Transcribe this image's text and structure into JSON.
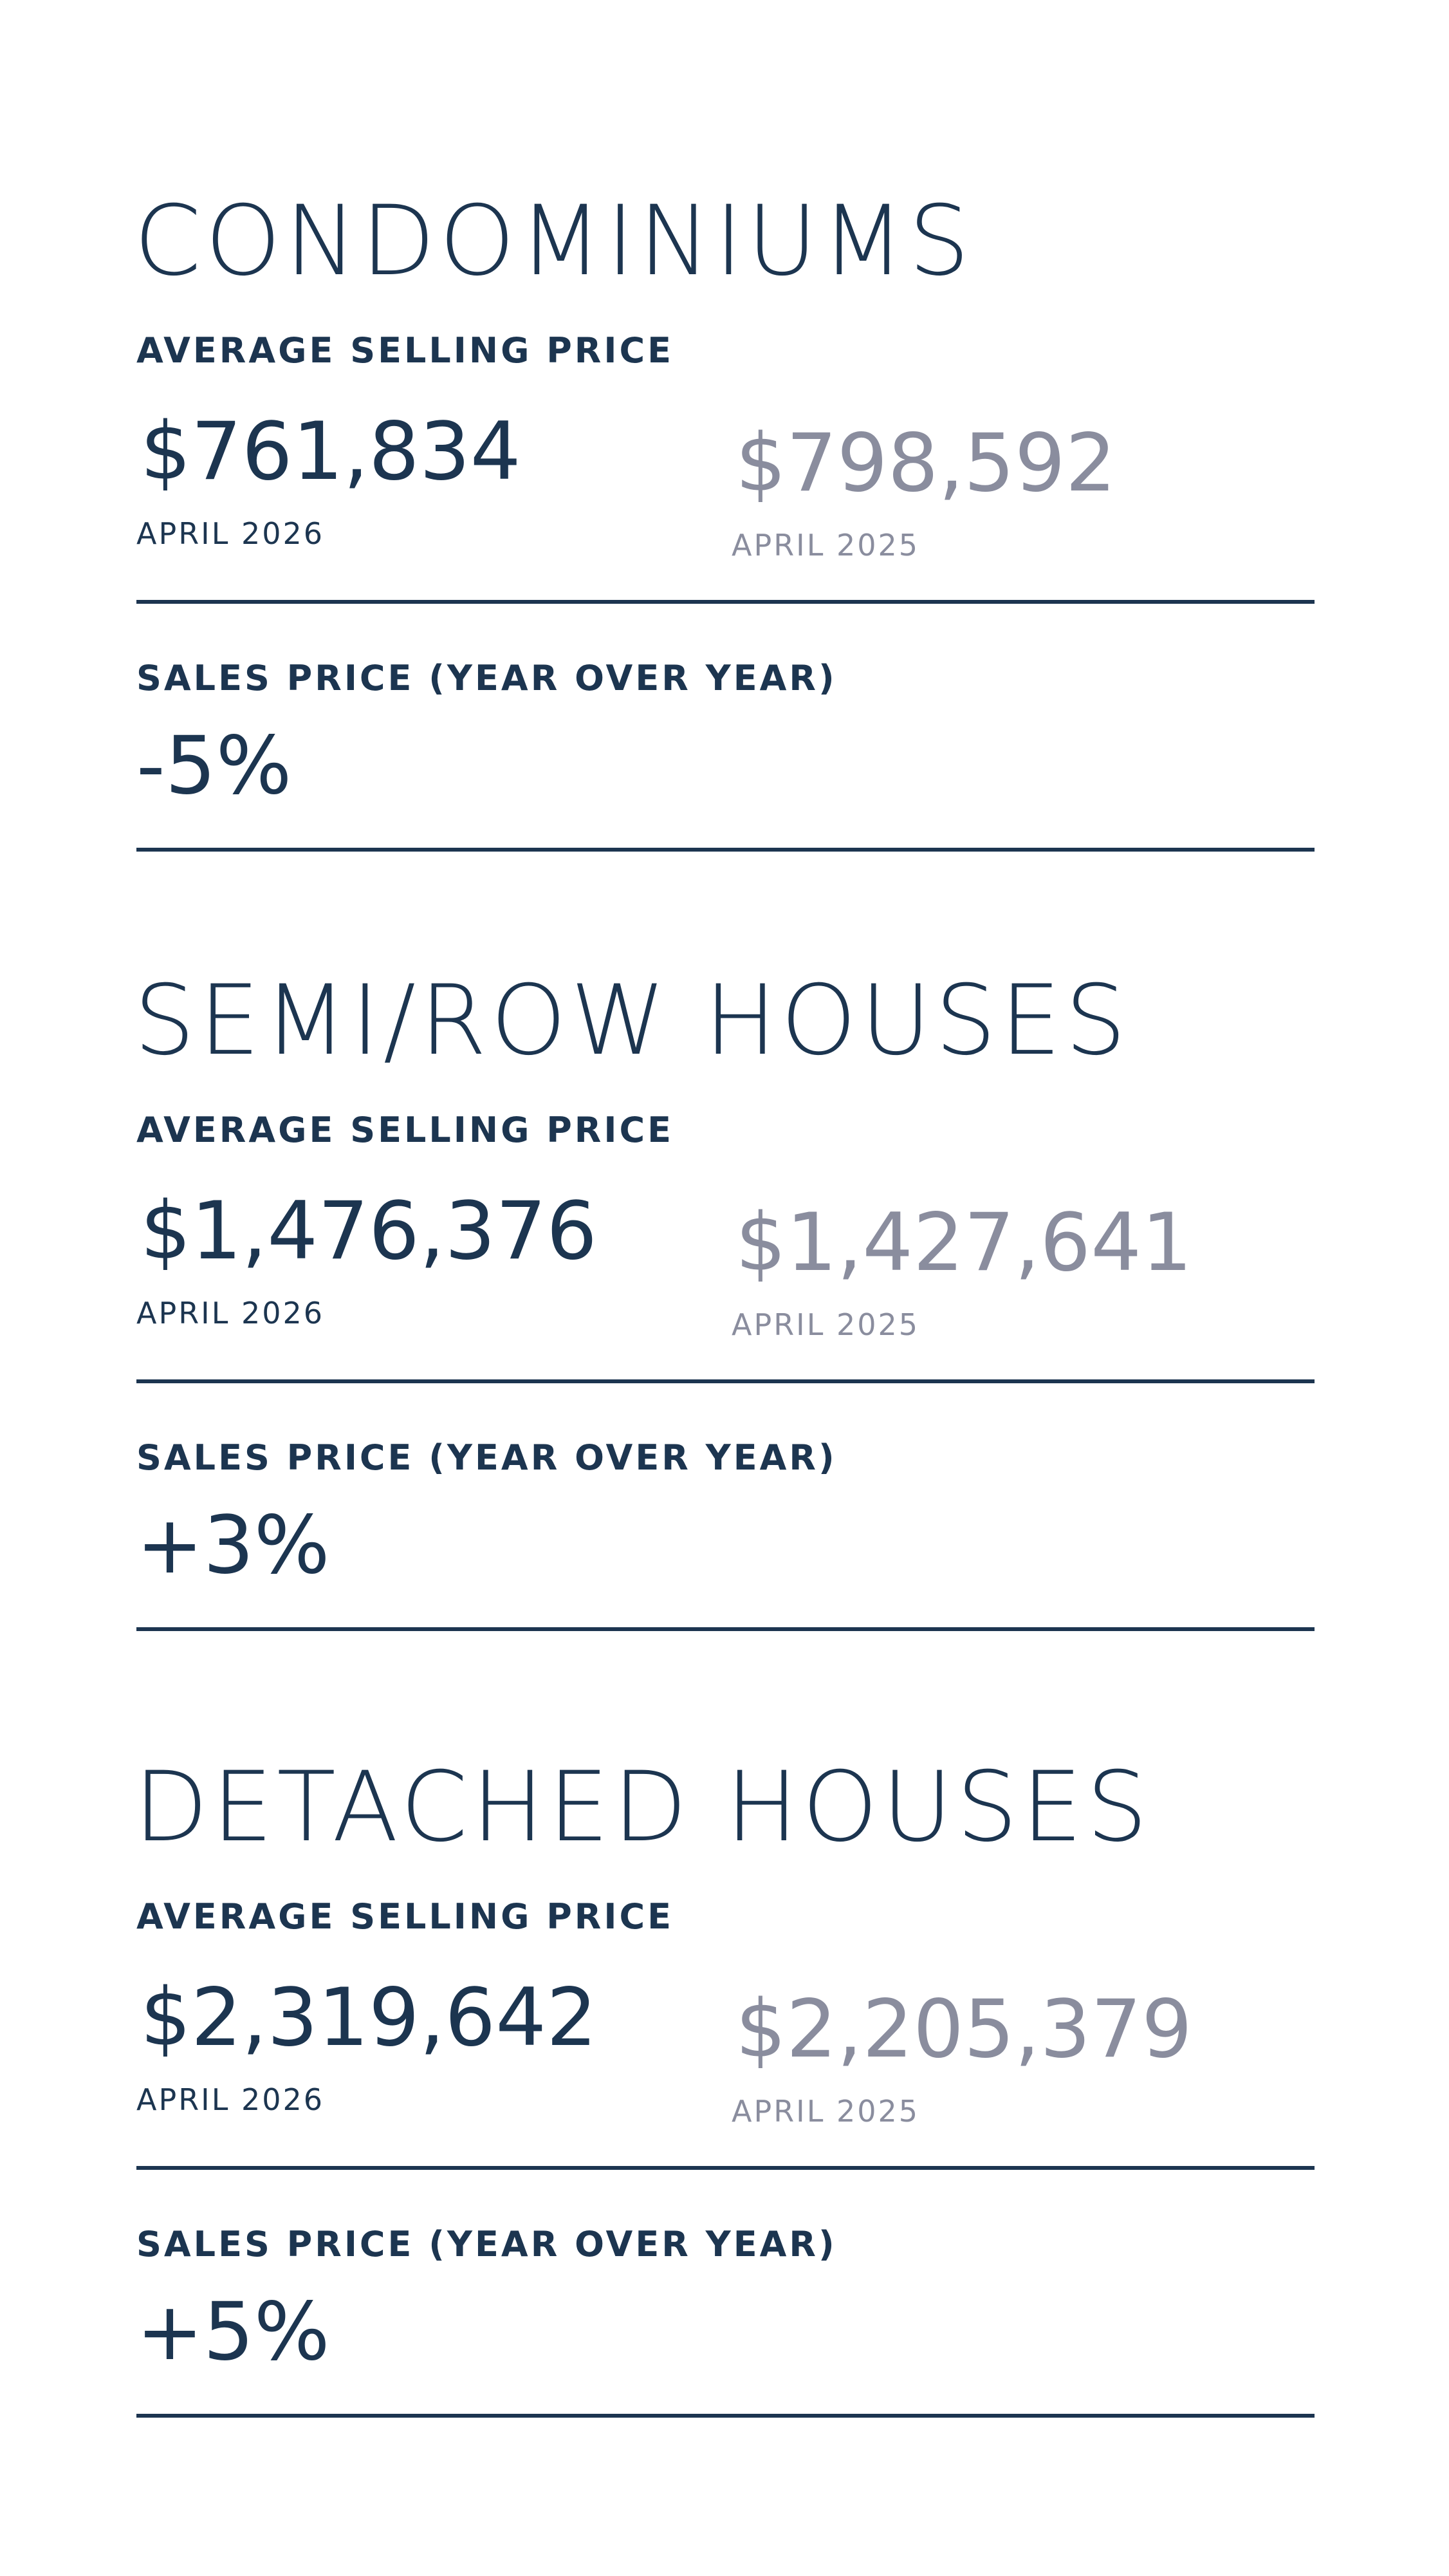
{
  "sections": [
    {
      "title": "CONDOMINIUMS",
      "average_label": "AVERAGE SELLING PRICE",
      "current": {
        "price": "$761,834",
        "period": "APRIL 2026"
      },
      "previous": {
        "price": "$798,592",
        "period": "APRIL 2025"
      },
      "yoy_label": "SALES PRICE (YEAR OVER YEAR)",
      "yoy_value": "-5%"
    },
    {
      "title": "SEMI/ROW HOUSES",
      "average_label": "AVERAGE SELLING PRICE",
      "current": {
        "price": "$1,476,376",
        "period": "APRIL 2026"
      },
      "previous": {
        "price": "$1,427,641",
        "period": "APRIL 2025"
      },
      "yoy_label": "SALES PRICE (YEAR OVER YEAR)",
      "yoy_value": "+3%"
    },
    {
      "title": "DETACHED HOUSES",
      "average_label": "AVERAGE SELLING PRICE",
      "current": {
        "price": "$2,319,642",
        "period": "APRIL 2026"
      },
      "previous": {
        "price": "$2,205,379",
        "period": "APRIL 2025"
      },
      "yoy_label": "SALES PRICE (YEAR OVER YEAR)",
      "yoy_value": "+5%"
    }
  ]
}
